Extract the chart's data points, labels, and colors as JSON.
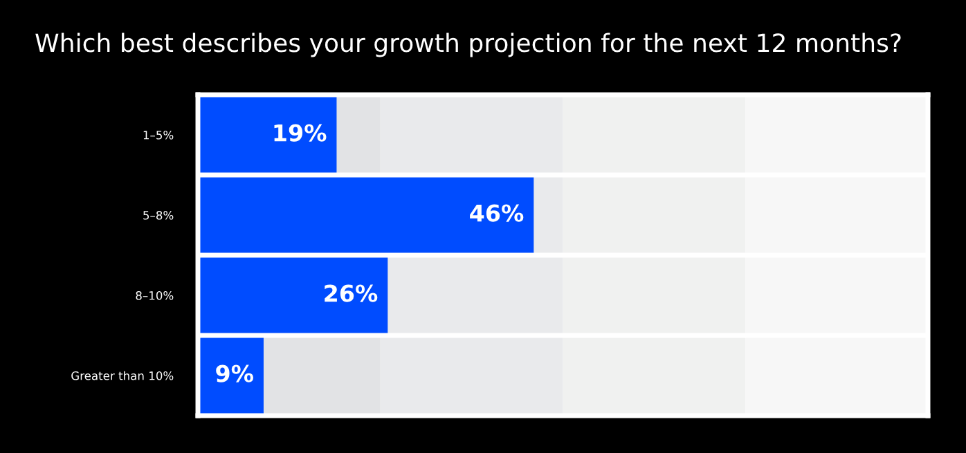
{
  "chart_data": {
    "type": "bar",
    "orientation": "horizontal",
    "title": "Which best describes your growth projection for the next 12 months?",
    "categories": [
      "1–5%",
      "5–8%",
      "8–10%",
      "Greater than 10%"
    ],
    "values": [
      19,
      46,
      26,
      9
    ],
    "color": "#004cff",
    "data_labels": true,
    "value_labels": [
      "19%",
      "46%",
      "26%",
      "9%"
    ],
    "xlim": [
      0,
      100
    ],
    "grid": false,
    "legend": false,
    "tick_labels": "y",
    "bands": [
      {
        "axis": "x",
        "from": 0,
        "to": 25,
        "color": "#e2e3e5"
      },
      {
        "axis": "x",
        "from": 25,
        "to": 50,
        "color": "#e9eaec"
      },
      {
        "axis": "x",
        "from": 50,
        "to": 75,
        "color": "#f0f1f0"
      },
      {
        "axis": "x",
        "from": 75,
        "to": 100,
        "color": "#f7f7f7"
      }
    ]
  }
}
